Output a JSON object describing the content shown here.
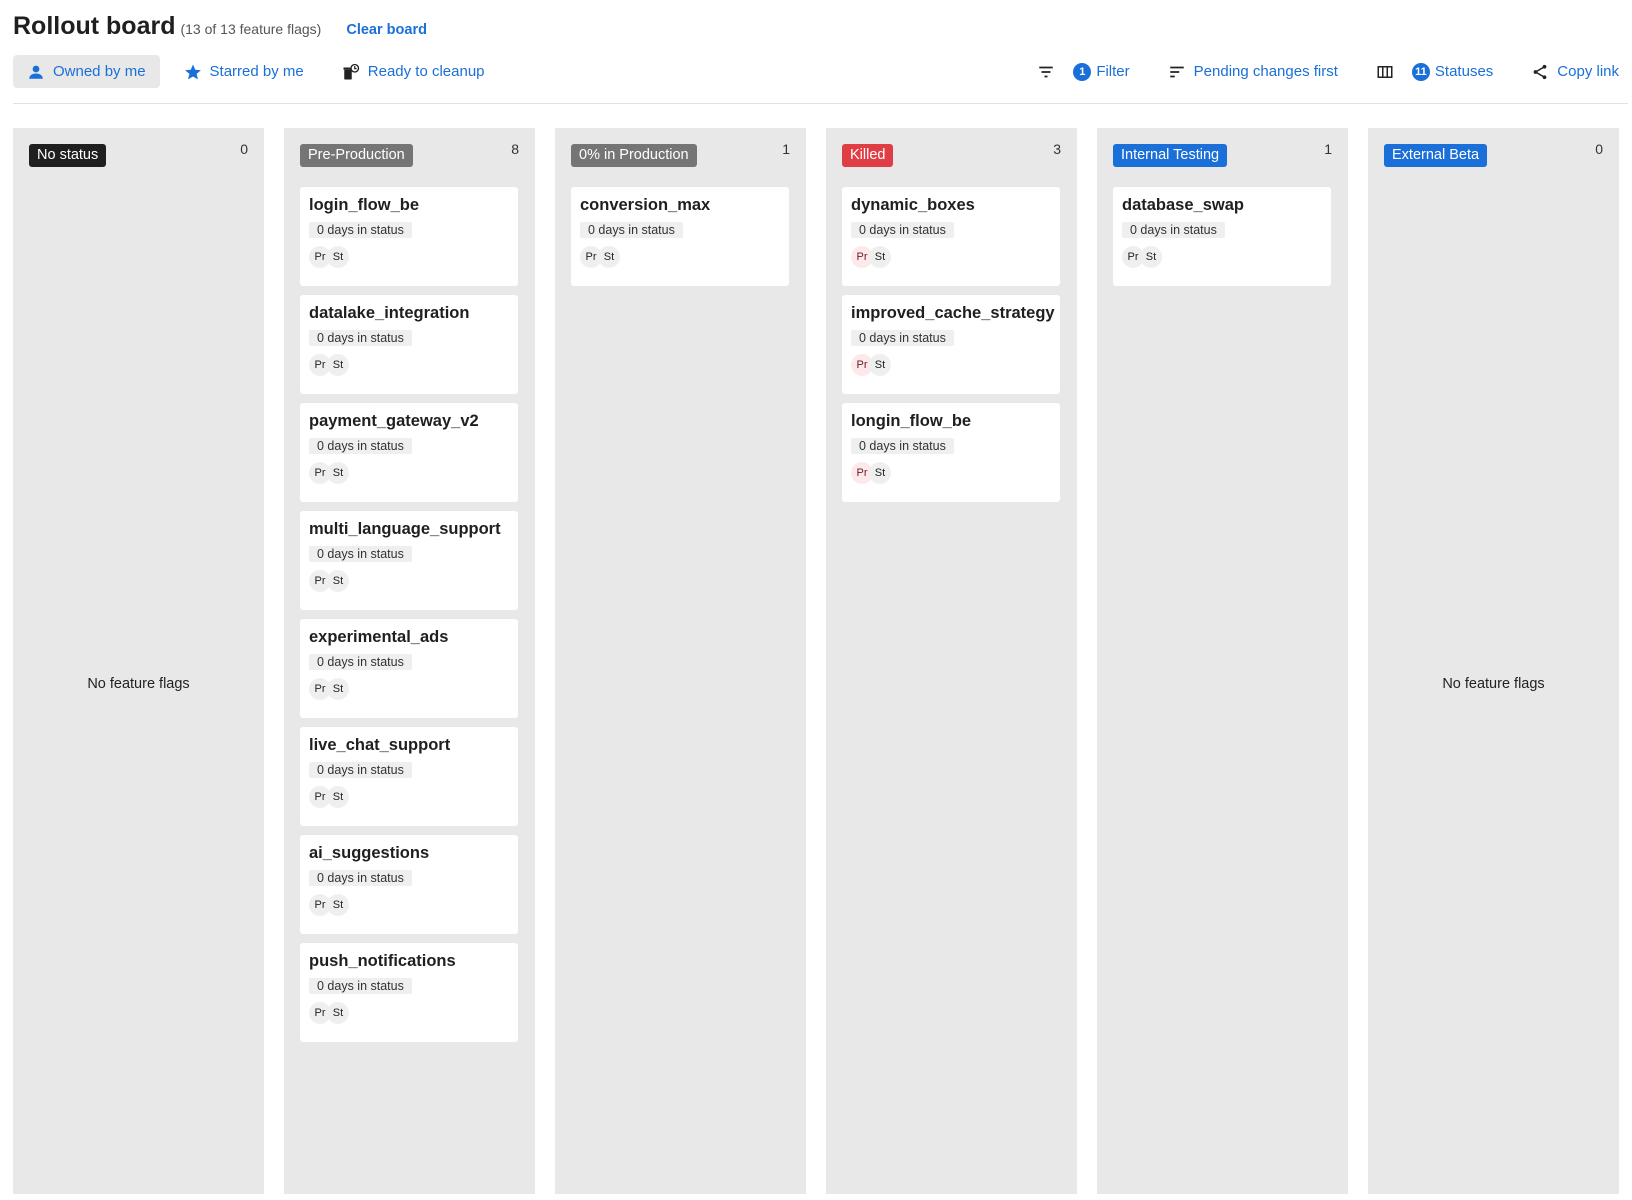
{
  "header": {
    "title": "Rollout board",
    "subtitle": "(13 of 13 feature flags)",
    "clear_label": "Clear board"
  },
  "toolbar": {
    "owned": "Owned by me",
    "starred": "Starred by me",
    "cleanup": "Ready to cleanup",
    "filter_count": "1",
    "filter": "Filter",
    "sort": "Pending changes first",
    "statuses_count": "11",
    "statuses": "Statuses",
    "copy": "Copy link"
  },
  "colors": {
    "accent": "#1a6fd8",
    "killed": "#e03e45",
    "gray": "#757575",
    "dark": "#1f1f1f"
  },
  "empty_text": "No feature flags",
  "columns": [
    {
      "status": "No status",
      "color": "#1f1f1f",
      "count": "0",
      "cards": []
    },
    {
      "status": "Pre-Production",
      "color": "#757575",
      "count": "8",
      "cards": [
        {
          "name": "login_flow_be",
          "days": "0 days in status",
          "envs": [
            "Pr",
            "St"
          ]
        },
        {
          "name": "datalake_integration",
          "days": "0 days in status",
          "envs": [
            "Pr",
            "St"
          ]
        },
        {
          "name": "payment_gateway_v2",
          "days": "0 days in status",
          "envs": [
            "Pr",
            "St"
          ]
        },
        {
          "name": "multi_language_support",
          "days": "0 days in status",
          "envs": [
            "Pr",
            "St"
          ]
        },
        {
          "name": "experimental_ads",
          "days": "0 days in status",
          "envs": [
            "Pr",
            "St"
          ]
        },
        {
          "name": "live_chat_support",
          "days": "0 days in status",
          "envs": [
            "Pr",
            "St"
          ]
        },
        {
          "name": "ai_suggestions",
          "days": "0 days in status",
          "envs": [
            "Pr",
            "St"
          ]
        },
        {
          "name": "push_notifications",
          "days": "0 days in status",
          "envs": [
            "Pr",
            "St"
          ]
        }
      ]
    },
    {
      "status": "0% in Production",
      "color": "#757575",
      "count": "1",
      "cards": [
        {
          "name": "conversion_max",
          "days": "0 days in status",
          "envs": [
            "Pr",
            "St"
          ]
        }
      ]
    },
    {
      "status": "Killed",
      "color": "#e03e45",
      "count": "3",
      "cards": [
        {
          "name": "dynamic_boxes",
          "days": "0 days in status",
          "envs": [
            "Pr",
            "St"
          ],
          "pr_killed": true
        },
        {
          "name": "improved_cache_strategy",
          "days": "0 days in status",
          "envs": [
            "Pr",
            "St"
          ],
          "pr_killed": true
        },
        {
          "name": "longin_flow_be",
          "days": "0 days in status",
          "envs": [
            "Pr",
            "St"
          ],
          "pr_killed": true
        }
      ]
    },
    {
      "status": "Internal Testing",
      "color": "#1a6fd8",
      "count": "1",
      "cards": [
        {
          "name": "database_swap",
          "days": "0 days in status",
          "envs": [
            "Pr",
            "St"
          ]
        }
      ]
    },
    {
      "status": "External Beta",
      "color": "#1a6fd8",
      "count": "0",
      "cards": []
    }
  ]
}
